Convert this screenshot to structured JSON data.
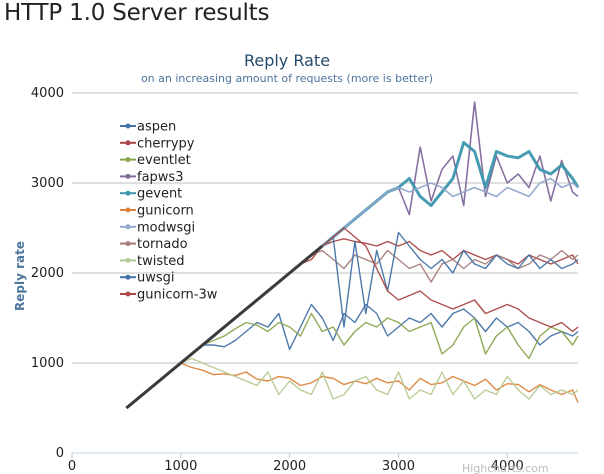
{
  "page_heading": "HTTP 1.0 Server results",
  "chart_data": {
    "type": "line",
    "title": "Reply Rate",
    "subtitle": "on an increasing amount of requests (more is better)",
    "xlabel": "",
    "ylabel": "Reply rate",
    "xlim": [
      0,
      4650
    ],
    "ylim": [
      0,
      4000
    ],
    "x_ticks": [
      0,
      1000,
      2000,
      3000,
      4000
    ],
    "y_ticks": [
      0,
      1000,
      2000,
      3000,
      4000
    ],
    "grid": true,
    "legend_position": "top-left",
    "credits": "Highcharts.com",
    "x": [
      500,
      600,
      700,
      800,
      900,
      1000,
      1100,
      1200,
      1300,
      1400,
      1500,
      1600,
      1700,
      1800,
      1900,
      2000,
      2100,
      2200,
      2300,
      2400,
      2500,
      2600,
      2700,
      2800,
      2900,
      3000,
      3100,
      3200,
      3300,
      3400,
      3500,
      3600,
      3700,
      3800,
      3900,
      4000,
      4100,
      4200,
      4300,
      4400,
      4500,
      4600,
      4650
    ],
    "series": [
      {
        "name": "aspen",
        "color": "#4572a7",
        "values": [
          500,
          600,
          700,
          800,
          900,
          1000,
          1100,
          1200,
          1200,
          1180,
          1250,
          1350,
          1450,
          1400,
          1550,
          1150,
          1400,
          1650,
          1500,
          1250,
          1550,
          1450,
          1650,
          1550,
          1300,
          1400,
          1500,
          1450,
          1550,
          1400,
          1550,
          1600,
          1500,
          1350,
          1500,
          1400,
          1450,
          1350,
          1200,
          1300,
          1350,
          1300,
          1350
        ]
      },
      {
        "name": "cherrypy",
        "color": "#aa4643",
        "values": [
          500,
          600,
          700,
          800,
          900,
          1000,
          1100,
          1200,
          1300,
          1400,
          1500,
          1600,
          1700,
          1800,
          1900,
          2000,
          2100,
          2150,
          2300,
          2350,
          2380,
          2350,
          2330,
          2300,
          2350,
          2300,
          2350,
          2250,
          2200,
          2250,
          2150,
          2250,
          2200,
          2150,
          2200,
          2150,
          2100,
          2200,
          2150,
          2100,
          2150,
          2200,
          2100
        ]
      },
      {
        "name": "eventlet",
        "color": "#89a54e",
        "values": [
          500,
          600,
          700,
          800,
          900,
          1000,
          1100,
          1200,
          1250,
          1300,
          1380,
          1450,
          1420,
          1350,
          1450,
          1400,
          1300,
          1550,
          1350,
          1400,
          1200,
          1350,
          1450,
          1400,
          1500,
          1450,
          1350,
          1400,
          1450,
          1100,
          1200,
          1400,
          1500,
          1100,
          1300,
          1400,
          1200,
          1050,
          1300,
          1400,
          1350,
          1200,
          1300
        ]
      },
      {
        "name": "fapws3",
        "color": "#80699b",
        "values": [
          500,
          600,
          700,
          800,
          900,
          1000,
          1100,
          1200,
          1300,
          1400,
          1500,
          1600,
          1700,
          1800,
          1900,
          2000,
          2100,
          2200,
          2300,
          2400,
          2500,
          2600,
          2700,
          2800,
          2900,
          2950,
          2650,
          3400,
          2800,
          3150,
          3300,
          2750,
          3900,
          2850,
          3300,
          3000,
          3100,
          2950,
          3300,
          2800,
          3250,
          2900,
          2850
        ]
      },
      {
        "name": "gevent",
        "color": "#3d96ae",
        "values": [
          500,
          600,
          700,
          800,
          900,
          1000,
          1100,
          1200,
          1300,
          1400,
          1500,
          1600,
          1700,
          1800,
          1900,
          2000,
          2100,
          2200,
          2300,
          2400,
          2500,
          2600,
          2700,
          2800,
          2900,
          2950,
          3050,
          2850,
          2750,
          2900,
          3050,
          3450,
          3350,
          2950,
          3350,
          3300,
          3280,
          3350,
          3150,
          3100,
          3200,
          3050,
          2950
        ]
      },
      {
        "name": "gunicorn",
        "color": "#db843d",
        "values": [
          500,
          600,
          700,
          800,
          900,
          1000,
          950,
          920,
          870,
          880,
          860,
          900,
          820,
          800,
          850,
          830,
          750,
          780,
          850,
          830,
          760,
          800,
          770,
          830,
          780,
          800,
          700,
          830,
          760,
          780,
          850,
          800,
          750,
          820,
          700,
          770,
          760,
          680,
          760,
          700,
          650,
          700,
          560
        ]
      },
      {
        "name": "modwsgi",
        "color": "#92a8cd",
        "values": [
          500,
          600,
          700,
          800,
          900,
          1000,
          1100,
          1200,
          1300,
          1400,
          1500,
          1600,
          1700,
          1800,
          1900,
          2000,
          2100,
          2200,
          2300,
          2400,
          2500,
          2600,
          2700,
          2800,
          2900,
          2950,
          2900,
          2950,
          3000,
          2950,
          2850,
          2900,
          2950,
          2900,
          2850,
          2950,
          2900,
          2850,
          3000,
          3050,
          2950,
          3000,
          2950
        ]
      },
      {
        "name": "tornado",
        "color": "#a47d7c",
        "values": [
          500,
          600,
          700,
          800,
          900,
          1000,
          1100,
          1200,
          1300,
          1400,
          1500,
          1600,
          1700,
          1800,
          1900,
          2000,
          2100,
          2200,
          2250,
          2150,
          2050,
          2200,
          2150,
          2100,
          2250,
          2150,
          2050,
          2100,
          1900,
          2100,
          2150,
          2050,
          2150,
          2100,
          2200,
          2150,
          2050,
          2100,
          2200,
          2150,
          2250,
          2150,
          2200
        ]
      },
      {
        "name": "twisted",
        "color": "#b5ca92",
        "values": [
          500,
          600,
          700,
          800,
          900,
          1000,
          1050,
          1000,
          950,
          900,
          850,
          800,
          750,
          900,
          650,
          800,
          700,
          650,
          900,
          600,
          650,
          800,
          850,
          700,
          650,
          900,
          600,
          700,
          650,
          900,
          650,
          800,
          600,
          700,
          650,
          850,
          700,
          600,
          750,
          650,
          700,
          650,
          700
        ]
      },
      {
        "name": "uwsgi",
        "color": "#4572a7",
        "values": [
          500,
          600,
          700,
          800,
          900,
          1000,
          1100,
          1200,
          1300,
          1400,
          1500,
          1600,
          1700,
          1800,
          1900,
          2000,
          2100,
          2200,
          2300,
          2400,
          1400,
          2350,
          1550,
          2250,
          1800,
          2450,
          2300,
          2150,
          2050,
          2150,
          2000,
          2250,
          2100,
          2050,
          2200,
          2100,
          2050,
          2200,
          2050,
          2150,
          2050,
          2100,
          2150
        ]
      },
      {
        "name": "gunicorn-3w",
        "color": "#aa4643",
        "values": [
          500,
          600,
          700,
          800,
          900,
          1000,
          1100,
          1200,
          1300,
          1400,
          1500,
          1600,
          1700,
          1800,
          1900,
          2000,
          2100,
          2200,
          2300,
          2400,
          2500,
          2400,
          2300,
          2050,
          1800,
          1700,
          1750,
          1800,
          1700,
          1650,
          1600,
          1650,
          1700,
          1550,
          1600,
          1650,
          1600,
          1500,
          1450,
          1400,
          1450,
          1350,
          1400
        ]
      }
    ]
  }
}
